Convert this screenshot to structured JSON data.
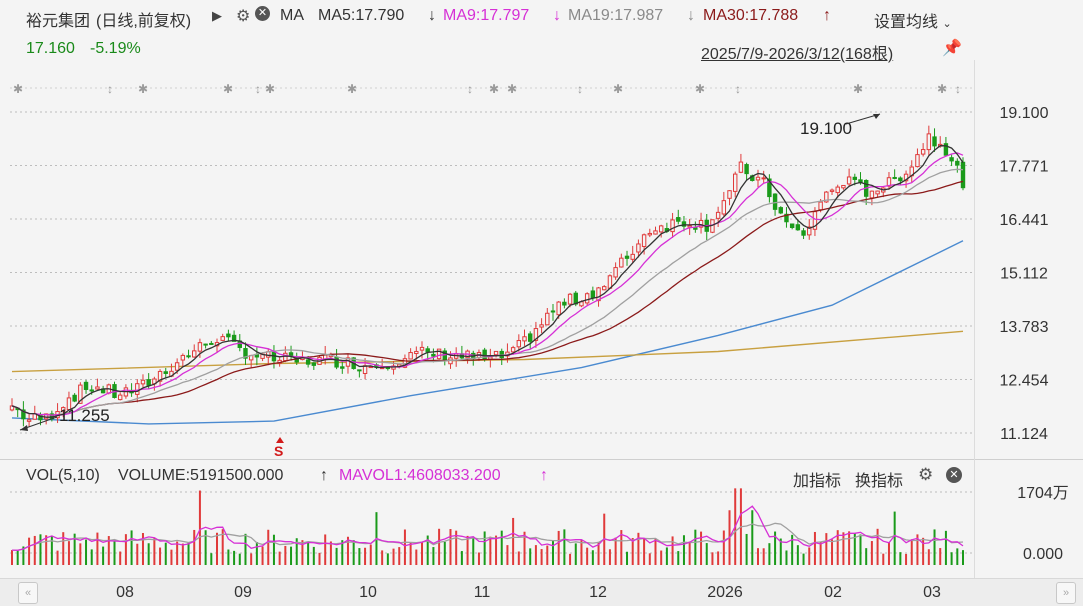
{
  "header": {
    "stock_name": "裕元集团",
    "mode": "(日线,前复权)",
    "ma_label": "MA",
    "ma5": "MA5:17.790",
    "ma9": "MA9:17.797",
    "ma19": "MA19:17.987",
    "ma30": "MA30:17.788",
    "ma5_arrow": "↓",
    "ma9_arrow": "↓",
    "ma19_arrow": "↓",
    "ma30_arrow": "↑",
    "settings_label": "设置均线",
    "price": "17.160",
    "change": "-5.19%",
    "range": "2025/7/9-2026/3/12(168根)"
  },
  "volume_header": {
    "vol_label": "VOL(5,10)",
    "volume": "VOLUME:5191500.000",
    "volume_arrow": "↑",
    "mavol": "MAVOL1:4608033.200",
    "mavol_arrow": "↑",
    "add_indicator": "加指标",
    "switch_indicator": "换指标"
  },
  "colors": {
    "up": "#e03a3a",
    "down": "#1a9a1a",
    "ma5": "#333333",
    "ma9": "#d630d6",
    "ma19": "#a0a0a0",
    "ma30": "#8b1a1a",
    "ma_long1": "#4a8ad0",
    "ma_long2": "#c8a040"
  },
  "chart_data": {
    "type": "candlestick",
    "price_ticks": [
      "19.100",
      "17.771",
      "16.441",
      "15.112",
      "13.783",
      "12.454",
      "11.124"
    ],
    "ylim": [
      10.6,
      19.6
    ],
    "volume_ticks": [
      "1704万",
      "0.000"
    ],
    "x_ticks": [
      "08",
      "09",
      "10",
      "11",
      "12",
      "2026",
      "02",
      "03"
    ],
    "annotations": [
      {
        "text": "19.100",
        "kind": "high"
      },
      {
        "text": "11.255",
        "kind": "low"
      }
    ],
    "marker": "S",
    "candle_count": 168,
    "series_names": [
      "MA5",
      "MA9",
      "MA19",
      "MA30"
    ],
    "ma_long_a": [
      [
        0,
        11.5
      ],
      [
        24,
        11.35
      ],
      [
        46,
        11.42
      ],
      [
        70,
        12.05
      ],
      [
        100,
        12.75
      ],
      [
        124,
        13.55
      ],
      [
        144,
        14.3
      ],
      [
        168,
        15.9
      ]
    ],
    "ma_long_b": [
      [
        0,
        12.65
      ],
      [
        46,
        12.85
      ],
      [
        90,
        12.95
      ],
      [
        124,
        13.15
      ],
      [
        168,
        13.65
      ]
    ],
    "ma30_curve": [
      [
        0,
        11.1
      ],
      [
        20,
        12.1
      ],
      [
        45,
        12.9
      ],
      [
        70,
        13.15
      ],
      [
        86,
        13.5
      ],
      [
        106,
        15.2
      ],
      [
        124,
        16.7
      ],
      [
        140,
        17.15
      ],
      [
        156,
        17.65
      ],
      [
        168,
        17.79
      ]
    ],
    "ma19_curve": [
      [
        0,
        11.35
      ],
      [
        20,
        12.25
      ],
      [
        45,
        12.95
      ],
      [
        72,
        13.25
      ],
      [
        90,
        14.4
      ],
      [
        106,
        15.9
      ],
      [
        124,
        17.0
      ],
      [
        140,
        17.1
      ],
      [
        156,
        17.95
      ],
      [
        168,
        17.99
      ]
    ]
  }
}
